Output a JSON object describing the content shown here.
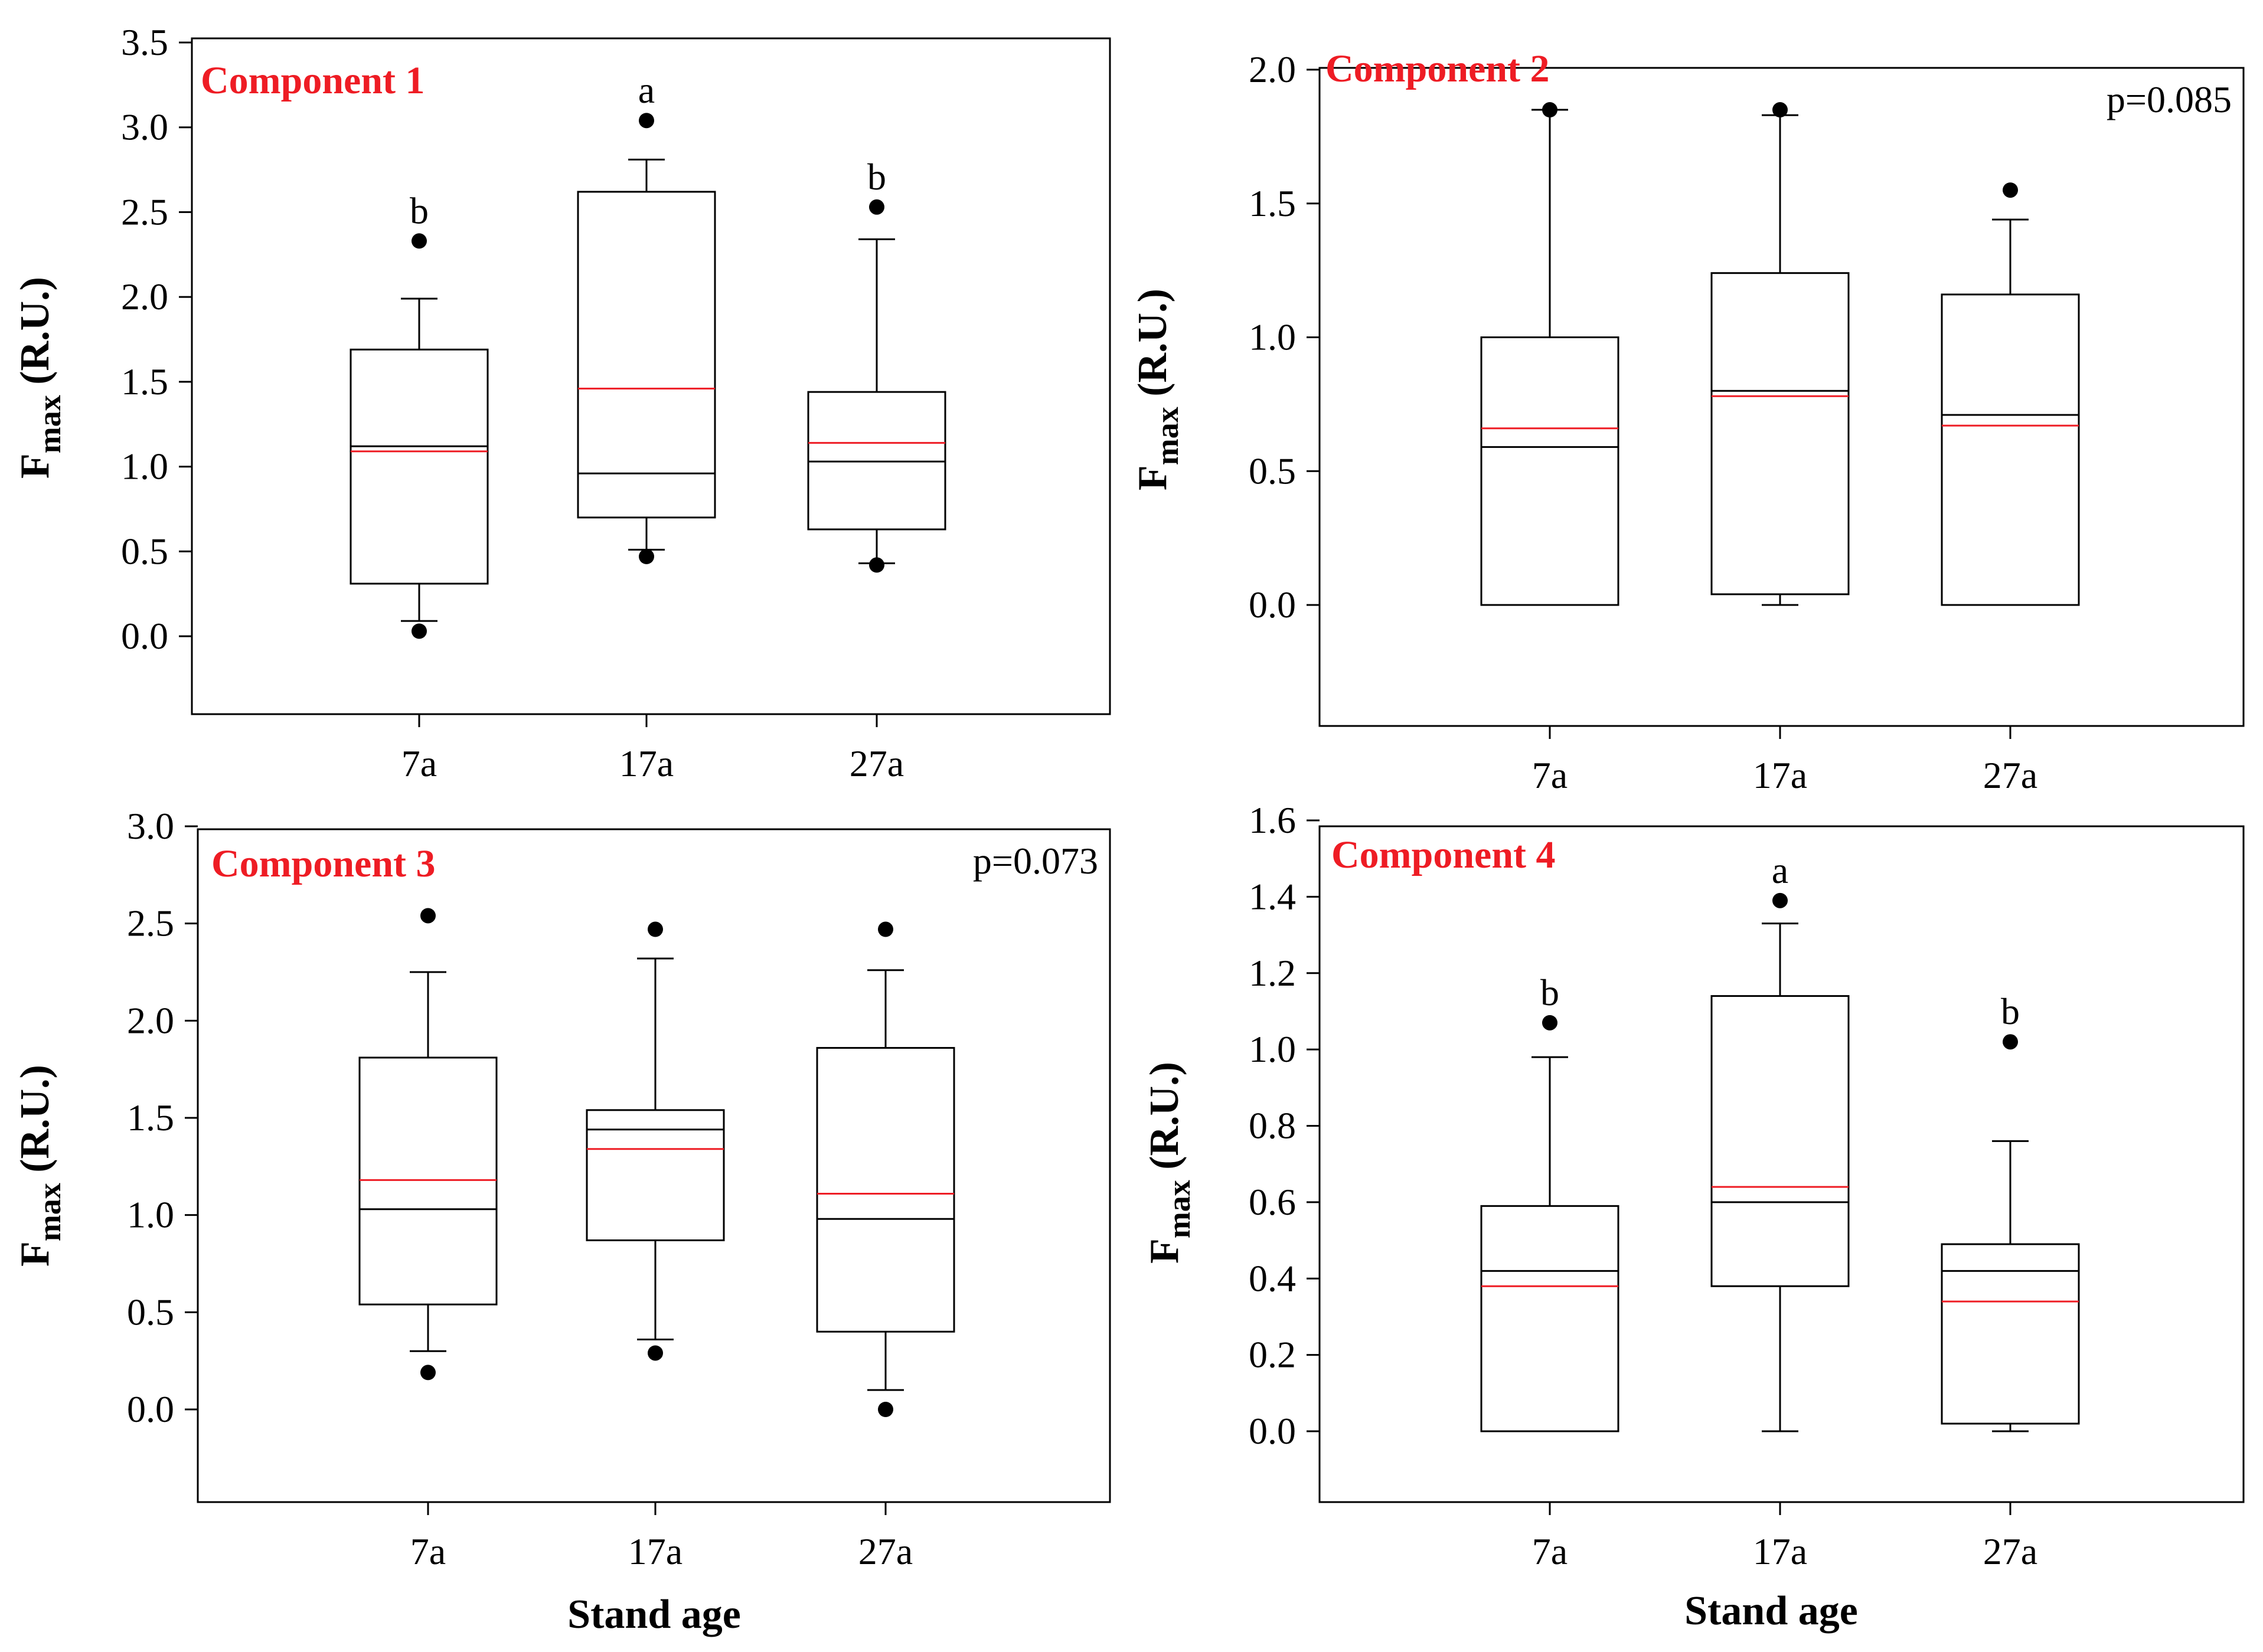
{
  "chart_data": [
    {
      "type": "box",
      "title": "Component 1",
      "title_color": "#ee1c24",
      "ylabel": "F",
      "ylabel_sub": "max",
      "ylabel_unit": "(R.U.)",
      "xlabel": "",
      "categories": [
        "7a",
        "17a",
        "27a"
      ],
      "ylim": [
        -0.45,
        3.5
      ],
      "yticks": [
        "0.0",
        "0.5",
        "1.0",
        "1.5",
        "2.0",
        "2.5",
        "3.0",
        "3.5"
      ],
      "p_value": "",
      "boxes": [
        {
          "q1": 0.31,
          "median": 1.12,
          "mean": 1.09,
          "q3": 1.69,
          "whisker_low": 0.09,
          "whisker_high": 1.99,
          "outliers": [
            0.03,
            2.33
          ],
          "letter": "b"
        },
        {
          "q1": 0.7,
          "median": 0.96,
          "mean": 1.46,
          "q3": 2.62,
          "whisker_low": 0.51,
          "whisker_high": 2.81,
          "outliers": [
            0.47,
            3.04
          ],
          "letter": "a"
        },
        {
          "q1": 0.63,
          "median": 1.03,
          "mean": 1.14,
          "q3": 1.44,
          "whisker_low": 0.43,
          "whisker_high": 2.34,
          "outliers": [
            0.42,
            2.53
          ],
          "letter": "b"
        }
      ]
    },
    {
      "type": "box",
      "title": "Component 2",
      "title_color": "#ee1c24",
      "ylabel": "F",
      "ylabel_sub": "max",
      "ylabel_unit": "(R.U.)",
      "xlabel": "",
      "categories": [
        "7a",
        "17a",
        "27a"
      ],
      "ylim": [
        -0.45,
        2.05
      ],
      "yticks": [
        "0.0",
        "0.5",
        "1.0",
        "1.5",
        "2.0"
      ],
      "p_value": "p=0.085",
      "boxes": [
        {
          "q1": 0.0,
          "median": 0.59,
          "mean": 0.66,
          "q3": 1.0,
          "whisker_low": 0.0,
          "whisker_high": 1.85,
          "outliers": [
            1.85
          ],
          "letter": ""
        },
        {
          "q1": 0.04,
          "median": 0.8,
          "mean": 0.78,
          "q3": 1.24,
          "whisker_low": 0.0,
          "whisker_high": 1.83,
          "outliers": [
            1.85
          ],
          "letter": ""
        },
        {
          "q1": 0.0,
          "median": 0.71,
          "mean": 0.67,
          "q3": 1.16,
          "whisker_low": 0.0,
          "whisker_high": 1.44,
          "outliers": [
            1.55
          ],
          "letter": ""
        }
      ]
    },
    {
      "type": "box",
      "title": "Component 3",
      "title_color": "#ee1c24",
      "ylabel": "F",
      "ylabel_sub": "max",
      "ylabel_unit": "(R.U.)",
      "xlabel": "Stand age",
      "categories": [
        "7a",
        "17a",
        "27a"
      ],
      "ylim": [
        -0.45,
        3.0
      ],
      "yticks": [
        "0.0",
        "0.5",
        "1.0",
        "1.5",
        "2.0",
        "2.5",
        "3.0"
      ],
      "p_value": "p=0.073",
      "boxes": [
        {
          "q1": 0.54,
          "median": 1.03,
          "mean": 1.18,
          "q3": 1.81,
          "whisker_low": 0.3,
          "whisker_high": 2.25,
          "outliers": [
            0.19,
            2.54
          ],
          "letter": ""
        },
        {
          "q1": 0.87,
          "median": 1.44,
          "mean": 1.34,
          "q3": 1.54,
          "whisker_low": 0.36,
          "whisker_high": 2.32,
          "outliers": [
            0.29,
            2.47
          ],
          "letter": ""
        },
        {
          "q1": 0.4,
          "median": 0.98,
          "mean": 1.11,
          "q3": 1.86,
          "whisker_low": 0.1,
          "whisker_high": 2.26,
          "outliers": [
            0.0,
            2.47
          ],
          "letter": ""
        }
      ]
    },
    {
      "type": "box",
      "title": "Component 4",
      "title_color": "#ee1c24",
      "ylabel": "F",
      "ylabel_sub": "max",
      "ylabel_unit": "(R.U.)",
      "xlabel": "Stand age",
      "categories": [
        "7a",
        "17a",
        "27a"
      ],
      "ylim": [
        -0.17,
        1.6
      ],
      "yticks": [
        "0.0",
        "0.2",
        "0.4",
        "0.6",
        "0.8",
        "1.0",
        "1.2",
        "1.4",
        "1.6"
      ],
      "p_value": "",
      "boxes": [
        {
          "q1": 0.0,
          "median": 0.42,
          "mean": 0.38,
          "q3": 0.59,
          "whisker_low": 0.0,
          "whisker_high": 0.98,
          "outliers": [
            1.07
          ],
          "letter": "b"
        },
        {
          "q1": 0.38,
          "median": 0.6,
          "mean": 0.64,
          "q3": 1.14,
          "whisker_low": 0.0,
          "whisker_high": 1.33,
          "outliers": [
            1.39
          ],
          "letter": "a"
        },
        {
          "q1": 0.02,
          "median": 0.42,
          "mean": 0.34,
          "q3": 0.49,
          "whisker_low": 0.0,
          "whisker_high": 0.76,
          "outliers": [
            1.02
          ],
          "letter": "b"
        }
      ]
    }
  ]
}
